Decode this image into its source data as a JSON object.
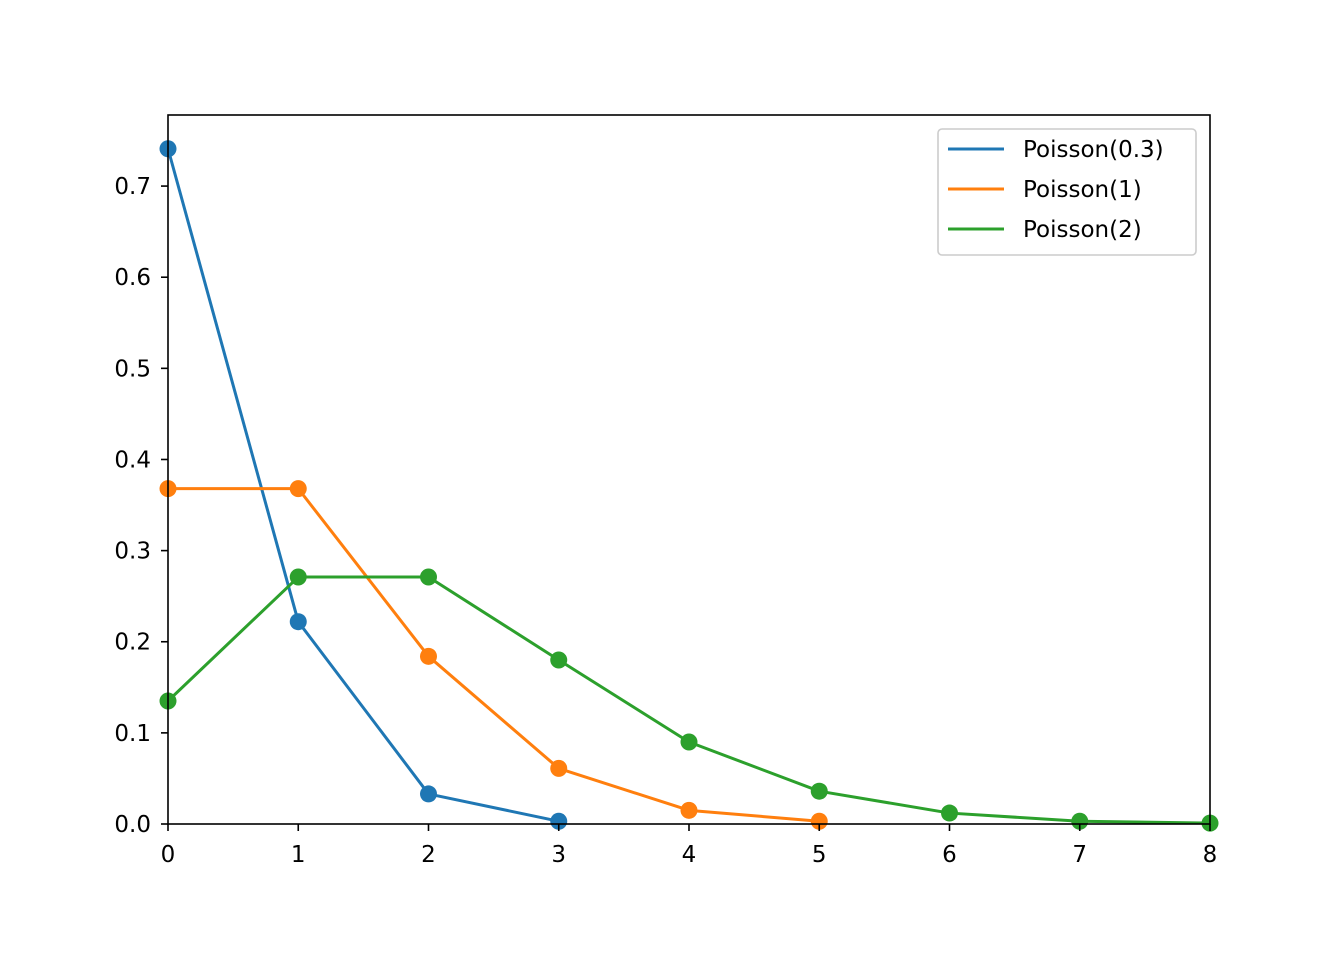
{
  "chart_data": {
    "type": "line",
    "title": "",
    "xlabel": "",
    "ylabel": "",
    "xlim": [
      0,
      8
    ],
    "ylim": [
      0,
      0.778
    ],
    "x_ticks": [
      0,
      1,
      2,
      3,
      4,
      5,
      6,
      7,
      8
    ],
    "x_tick_labels": [
      "0",
      "1",
      "2",
      "3",
      "4",
      "5",
      "6",
      "7",
      "8"
    ],
    "y_ticks": [
      0.0,
      0.1,
      0.2,
      0.3,
      0.4,
      0.5,
      0.6,
      0.7
    ],
    "y_tick_labels": [
      "0.0",
      "0.1",
      "0.2",
      "0.3",
      "0.4",
      "0.5",
      "0.6",
      "0.7"
    ],
    "grid": false,
    "legend_position": "top-right",
    "markers": "circle",
    "series": [
      {
        "name": "Poisson(0.3)",
        "color": "#1f77b4",
        "x": [
          0,
          1,
          2,
          3
        ],
        "values": [
          0.741,
          0.222,
          0.033,
          0.003
        ]
      },
      {
        "name": "Poisson(1)",
        "color": "#ff7f0e",
        "x": [
          0,
          1,
          2,
          3,
          4,
          5
        ],
        "values": [
          0.368,
          0.368,
          0.184,
          0.061,
          0.015,
          0.003
        ]
      },
      {
        "name": "Poisson(2)",
        "color": "#2ca02c",
        "x": [
          0,
          1,
          2,
          3,
          4,
          5,
          6,
          7,
          8
        ],
        "values": [
          0.135,
          0.271,
          0.271,
          0.18,
          0.09,
          0.036,
          0.012,
          0.003,
          0.001
        ]
      }
    ]
  }
}
